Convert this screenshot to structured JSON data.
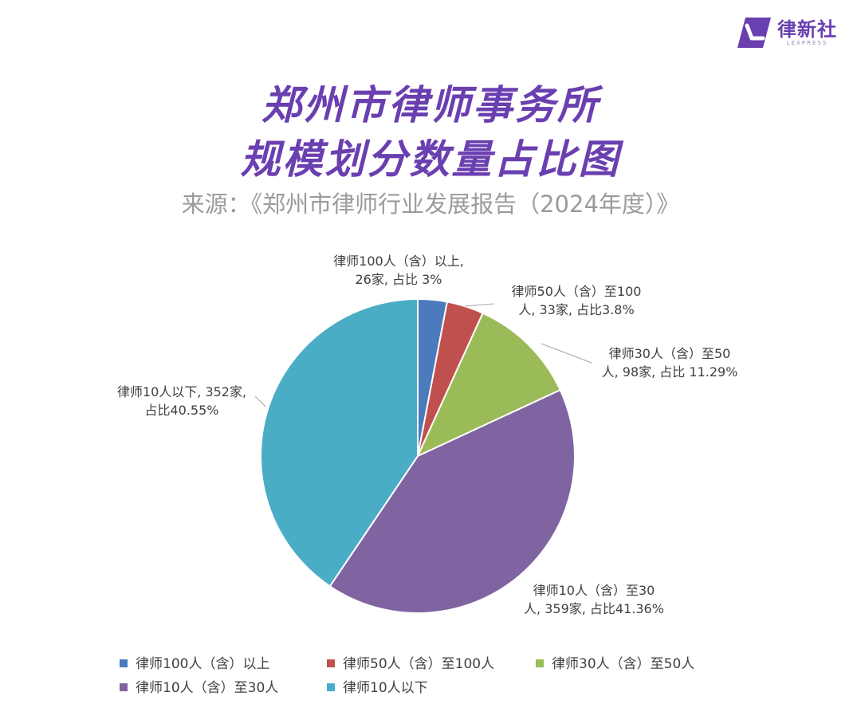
{
  "brand": {
    "name": "律新社",
    "sub": "LEXPRESS",
    "color": "#6a3fb0"
  },
  "header": {
    "title_line1": "郑州市律师事务所",
    "title_line2": "规模划分数量占比图",
    "source": "来源：《郑州市律师行业发展报告（2024年度）》"
  },
  "chart_data": {
    "type": "pie",
    "start_angle": "12 o'clock",
    "direction": "clockwise",
    "slices": [
      {
        "name": "律师100人（含）以上",
        "count": 26,
        "percent": 3,
        "color": "#4b7bbd",
        "label_lines": [
          "律师100人（含）以上,",
          "26家, 占比 3%"
        ]
      },
      {
        "name": "律师50人（含）至100人",
        "count": 33,
        "percent": 3.8,
        "color": "#c0504d",
        "label_lines": [
          "律师50人（含）至100",
          "人, 33家, 占比3.8%"
        ]
      },
      {
        "name": "律师30人（含）至50人",
        "count": 98,
        "percent": 11.29,
        "color": "#9bbb59",
        "label_lines": [
          "律师30人（含）至50",
          "人, 98家, 占比 11.29%"
        ]
      },
      {
        "name": "律师10人（含）至30人",
        "count": 359,
        "percent": 41.36,
        "color": "#8064a2",
        "label_lines": [
          "律师10人（含）至30",
          "人, 359家, 占比41.36%"
        ]
      },
      {
        "name": "律师10人以下",
        "count": 352,
        "percent": 40.55,
        "color": "#4bacc6",
        "label_lines": [
          "律师10人以下, 352家,",
          "占比40.55%"
        ]
      }
    ],
    "legend_position": "bottom"
  }
}
